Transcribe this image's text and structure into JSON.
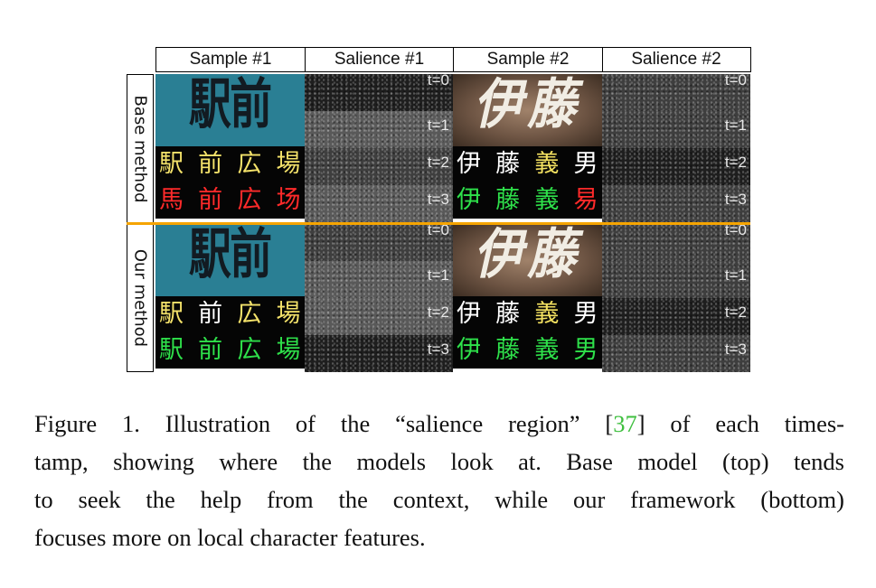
{
  "figure": {
    "headers": [
      "Sample #1",
      "Salience #1",
      "Sample #2",
      "Salience #2"
    ],
    "row_groups": [
      {
        "label": "Base method",
        "sample1_image_text": "駅前広場",
        "sample1_preds": [
          {
            "chars": [
              "駅",
              "前",
              "広",
              "場"
            ],
            "colors": [
              "#f4e26a",
              "#f4e26a",
              "#f4e26a",
              "#f4e26a"
            ]
          },
          {
            "chars": [
              "馬",
              "前",
              "広",
              "场"
            ],
            "colors": [
              "#ff2a2a",
              "#ff2a2a",
              "#ff2a2a",
              "#ff2a2a"
            ]
          }
        ],
        "sample2_image_text": "伊藤義男",
        "sample2_preds": [
          {
            "chars": [
              "伊",
              "藤",
              "義",
              "男"
            ],
            "colors": [
              "#ffffff",
              "#ffffff",
              "#f2e060",
              "#ffffff"
            ]
          },
          {
            "chars": [
              "伊",
              "藤",
              "義",
              "易"
            ],
            "colors": [
              "#2ee04a",
              "#2ee04a",
              "#2ee04a",
              "#ff2a2a"
            ]
          }
        ],
        "timesteps": [
          "t=0",
          "t=1",
          "t=2",
          "t=3"
        ]
      },
      {
        "label": "Our method",
        "sample1_image_text": "駅前広場",
        "sample1_preds": [
          {
            "chars": [
              "駅",
              "前",
              "広",
              "場"
            ],
            "colors": [
              "#f4e26a",
              "#ffffff",
              "#f4e26a",
              "#f4e26a"
            ]
          },
          {
            "chars": [
              "駅",
              "前",
              "広",
              "場"
            ],
            "colors": [
              "#2ee04a",
              "#2ee04a",
              "#2ee04a",
              "#2ee04a"
            ]
          }
        ],
        "sample2_image_text": "伊藤義男",
        "sample2_preds": [
          {
            "chars": [
              "伊",
              "藤",
              "義",
              "男"
            ],
            "colors": [
              "#ffffff",
              "#ffffff",
              "#f2e060",
              "#ffffff"
            ]
          },
          {
            "chars": [
              "伊",
              "藤",
              "義",
              "男"
            ],
            "colors": [
              "#2ee04a",
              "#2ee04a",
              "#2ee04a",
              "#2ee04a"
            ]
          }
        ],
        "timesteps": [
          "t=0",
          "t=1",
          "t=2",
          "t=3"
        ]
      }
    ],
    "divider_color": "#f5a400"
  },
  "caption": {
    "lines": [
      [
        "Figure 1. Illustration of the “salience region” [",
        "37",
        "] of each times-"
      ],
      [
        "tamp, showing where the models look at. Base model (top) tends"
      ],
      [
        "to seek the help from the context, while our framework (bottom)"
      ],
      [
        "focuses more on local character features."
      ]
    ]
  }
}
